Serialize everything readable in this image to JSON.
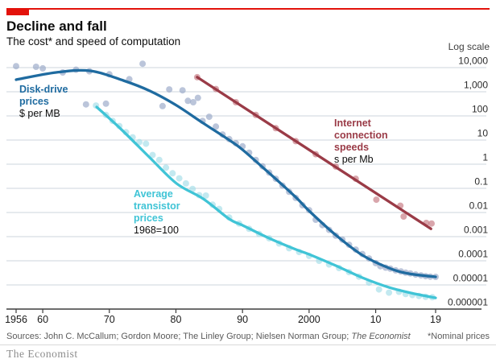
{
  "header": {
    "title": "Decline and fall",
    "subtitle": "The cost* and speed of computation",
    "scale_note": "Log scale"
  },
  "colors": {
    "accent_red": "#e3120b",
    "disk_line": "#1f6ba0",
    "disk_dot": "#97a6c6",
    "transistor_line": "#40c4d6",
    "transistor_dot": "#a3dde8",
    "internet_line": "#9a3b47",
    "internet_dot": "#c4767f",
    "grid": "#ccd6dd",
    "axis": "#3d3d3d",
    "muted_text": "#5b5b5b",
    "brand_grey": "#8c8c8c"
  },
  "series_labels": {
    "disk": {
      "line1": "Disk-drive",
      "line2": "prices",
      "sub": "$ per MB"
    },
    "transistor": {
      "line1": "Average",
      "line2": "transistor",
      "line3": "prices",
      "sub": "1968=100"
    },
    "internet": {
      "line1": "Internet",
      "line2": "connection",
      "line3": "speeds",
      "sub": "s per Mb"
    }
  },
  "footer": {
    "sources_prefix": "Sources: John C. McCallum; Gordon Moore; The Linley Group; Nielsen Norman Group; ",
    "sources_italic": "The Economist",
    "note": "*Nominal prices",
    "brand": "The Economist"
  },
  "chart_data": {
    "type": "scatter",
    "x_axis": {
      "range": [
        1956,
        2019
      ],
      "ticks": [
        {
          "year": 1956,
          "label": "1956"
        },
        {
          "year": 1960,
          "label": "60"
        },
        {
          "year": 1970,
          "label": "70"
        },
        {
          "year": 1980,
          "label": "80"
        },
        {
          "year": 1990,
          "label": "90"
        },
        {
          "year": 2000,
          "label": "2000"
        },
        {
          "year": 2010,
          "label": "10"
        },
        {
          "year": 2019,
          "label": "19"
        }
      ]
    },
    "y_axis": {
      "scale": "log10",
      "range_log": [
        4,
        -6
      ],
      "ticks": [
        {
          "label": "10,000",
          "log": 4
        },
        {
          "label": "1,000",
          "log": 3
        },
        {
          "label": "100",
          "log": 2
        },
        {
          "label": "10",
          "log": 1
        },
        {
          "label": "1",
          "log": 0
        },
        {
          "label": "0.1",
          "log": -1
        },
        {
          "label": "0.01",
          "log": -2
        },
        {
          "label": "0.001",
          "log": -3
        },
        {
          "label": "0.0001",
          "log": -4
        },
        {
          "label": "0.00001",
          "log": -5
        },
        {
          "label": "0.000001",
          "log": -6
        }
      ]
    },
    "series": [
      {
        "name": "Disk-drive prices ($ per MB)",
        "color_key": "disk",
        "line_style": "smooth",
        "trend": [
          [
            1956,
            3160
          ],
          [
            1962,
            6310
          ],
          [
            1967.1,
            7360
          ],
          [
            1972.1,
            2930
          ],
          [
            1976.1,
            1080
          ],
          [
            1980.1,
            271
          ],
          [
            1984.1,
            50
          ],
          [
            1988,
            10
          ],
          [
            1990,
            3.98
          ],
          [
            1994,
            0.43
          ],
          [
            1998,
            0.043
          ],
          [
            2000,
            0.0117
          ],
          [
            2004,
            0.00117
          ],
          [
            2008,
            0.000171
          ],
          [
            2012,
            5e-05
          ],
          [
            2015,
            2.93e-05
          ],
          [
            2019,
            2.15e-05
          ]
        ],
        "points": [
          [
            1956,
            11500
          ],
          [
            1959,
            10800
          ],
          [
            1960,
            9300
          ],
          [
            1963,
            6300
          ],
          [
            1965,
            8200
          ],
          [
            1966.5,
            300
          ],
          [
            1967,
            7000
          ],
          [
            1969.5,
            320
          ],
          [
            1970,
            5300
          ],
          [
            1973,
            3300
          ],
          [
            1975,
            14500
          ],
          [
            1978,
            255
          ],
          [
            1979,
            1250
          ],
          [
            1981,
            1150
          ],
          [
            1981.8,
            420
          ],
          [
            1982.6,
            370
          ],
          [
            1983.3,
            560
          ],
          [
            1984,
            62
          ],
          [
            1985,
            92
          ],
          [
            1986,
            36
          ],
          [
            1987,
            17
          ],
          [
            1988,
            11
          ],
          [
            1989,
            7.4
          ],
          [
            1990,
            5.5
          ],
          [
            1991,
            3.0
          ],
          [
            1992,
            1.5
          ],
          [
            1993,
            0.82
          ],
          [
            1994,
            0.45
          ],
          [
            1995,
            0.25
          ],
          [
            1996,
            0.13
          ],
          [
            1997,
            0.072
          ],
          [
            1998,
            0.04
          ],
          [
            1999,
            0.02
          ],
          [
            2000,
            0.0125
          ],
          [
            2001,
            0.005
          ],
          [
            2002,
            0.003
          ],
          [
            2003,
            0.0019
          ],
          [
            2004,
            0.0011
          ],
          [
            2005,
            0.00075
          ],
          [
            2006,
            0.00046
          ],
          [
            2007,
            0.00029
          ],
          [
            2008,
            0.00019
          ],
          [
            2009,
            0.000125
          ],
          [
            2010,
            8e-05
          ],
          [
            2010.7,
            6e-05
          ],
          [
            2011.5,
            5.2e-05
          ],
          [
            2012.2,
            4.7e-05
          ],
          [
            2013,
            4e-05
          ],
          [
            2013.8,
            3.6e-05
          ],
          [
            2014.5,
            3.2e-05
          ],
          [
            2015.2,
            3e-05
          ],
          [
            2016,
            2.7e-05
          ],
          [
            2016.8,
            2.5e-05
          ],
          [
            2017.5,
            2.3e-05
          ],
          [
            2018.2,
            2.2e-05
          ],
          [
            2019,
            2.15e-05
          ]
        ]
      },
      {
        "name": "Average transistor prices (1968=100)",
        "color_key": "transistor",
        "line_style": "smooth",
        "trend": [
          [
            1968.1,
            233
          ],
          [
            1971.7,
            29.3
          ],
          [
            1976.1,
            1.85
          ],
          [
            1980.1,
            0.158
          ],
          [
            1984.1,
            0.0369
          ],
          [
            1988,
            0.0054
          ],
          [
            1990,
            0.00294
          ],
          [
            1994,
            0.000856
          ],
          [
            1998,
            0.000294
          ],
          [
            2000,
            0.000185
          ],
          [
            2004,
            6.3e-05
          ],
          [
            2008,
            2e-05
          ],
          [
            2012,
            7.9e-06
          ],
          [
            2015.3,
            4.65e-06
          ],
          [
            2019,
            2.9e-06
          ]
        ],
        "points": [
          [
            1968,
            270
          ],
          [
            1969.5,
            110
          ],
          [
            1970.5,
            62
          ],
          [
            1971.5,
            38
          ],
          [
            1972.5,
            21
          ],
          [
            1973.5,
            13
          ],
          [
            1974.5,
            8.2
          ],
          [
            1975.5,
            7.0
          ],
          [
            1976.5,
            2.4
          ],
          [
            1977.5,
            1.5
          ],
          [
            1978.5,
            0.72
          ],
          [
            1979.5,
            0.42
          ],
          [
            1980.5,
            0.26
          ],
          [
            1981.5,
            0.16
          ],
          [
            1982.5,
            0.095
          ],
          [
            1983.5,
            0.052
          ],
          [
            1984.5,
            0.05
          ],
          [
            1985.5,
            0.021
          ],
          [
            1986.5,
            0.014
          ],
          [
            1988,
            0.0062
          ],
          [
            1989.5,
            0.0035
          ],
          [
            1991,
            0.0021
          ],
          [
            1992.5,
            0.0013
          ],
          [
            1994,
            0.00085
          ],
          [
            1995.5,
            0.00052
          ],
          [
            1997,
            0.00033
          ],
          [
            1998.5,
            0.00023
          ],
          [
            2000,
            0.00016
          ],
          [
            2001.5,
            0.0001
          ],
          [
            2003,
            7e-05
          ],
          [
            2004.5,
            5e-05
          ],
          [
            2006,
            3.4e-05
          ],
          [
            2007.5,
            2.2e-05
          ],
          [
            2009,
            1.25e-05
          ],
          [
            2010.5,
            6.5e-06
          ],
          [
            2012,
            4.8e-06
          ],
          [
            2013.5,
            5.2e-06
          ],
          [
            2014.5,
            4.2e-06
          ],
          [
            2015.5,
            3.8e-06
          ],
          [
            2016.5,
            3.5e-06
          ],
          [
            2017.5,
            3.2e-06
          ],
          [
            2018.5,
            3.1e-06
          ]
        ]
      },
      {
        "name": "Internet connection speeds (s per Mb)",
        "color_key": "internet",
        "line_style": "straight",
        "trend": [
          [
            1983.2,
            4000
          ],
          [
            2018.3,
            0.0021
          ]
        ],
        "points": [
          [
            1983.2,
            4000
          ],
          [
            1986,
            1300
          ],
          [
            1989,
            370
          ],
          [
            1992,
            110
          ],
          [
            1995,
            31
          ],
          [
            1998,
            9
          ],
          [
            2001,
            2.6
          ],
          [
            2004,
            0.8
          ],
          [
            2007,
            0.25
          ],
          [
            2010.1,
            0.034
          ],
          [
            2013.7,
            0.019
          ],
          [
            2014.2,
            0.0068
          ],
          [
            2017.6,
            0.0037
          ],
          [
            2018.4,
            0.0035
          ]
        ]
      }
    ]
  }
}
